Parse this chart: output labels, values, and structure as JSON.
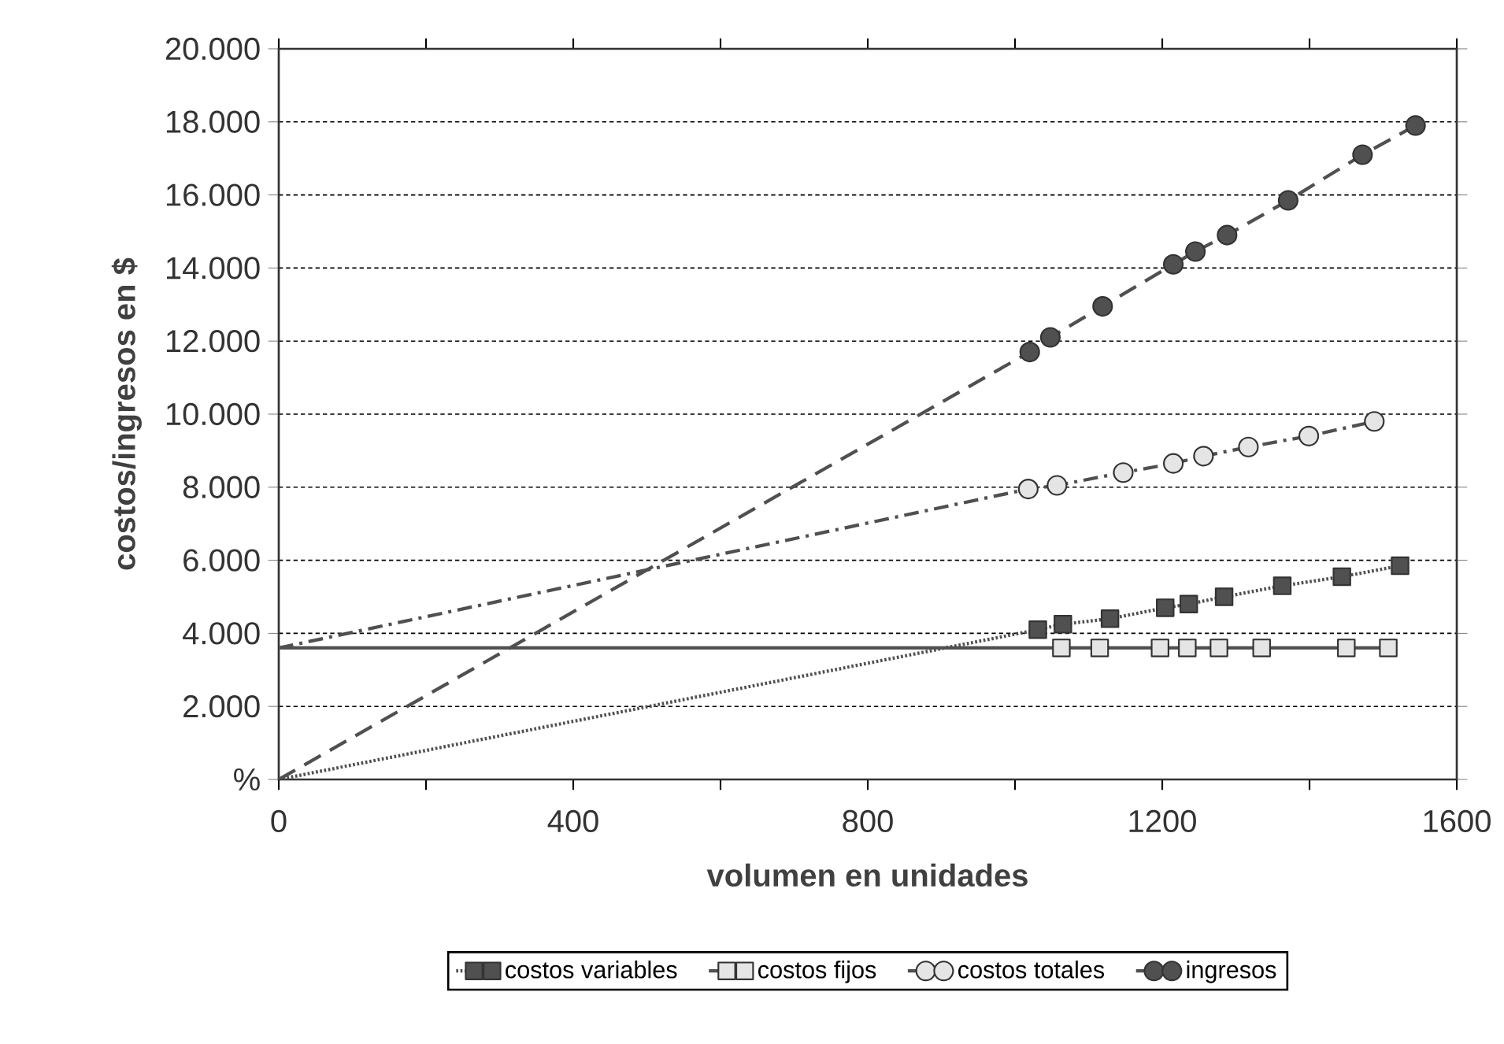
{
  "chart_data": {
    "type": "line",
    "xlabel": "volumen en unidades",
    "ylabel": "costos/ingresos en $",
    "xlim": [
      0,
      1600
    ],
    "ylim": [
      0,
      20000
    ],
    "xticks": [
      0,
      {
        "value": 200,
        "label": null
      },
      400,
      {
        "value": 600,
        "label": null
      },
      800,
      {
        "value": 1000,
        "label": null
      },
      1200,
      {
        "value": 1400,
        "label": null
      },
      1600
    ],
    "yticks": [
      {
        "value": 0,
        "label": "%"
      },
      {
        "value": 2000,
        "label": "2.000"
      },
      {
        "value": 4000,
        "label": "4.000"
      },
      {
        "value": 6000,
        "label": "6.000"
      },
      {
        "value": 8000,
        "label": "8.000"
      },
      {
        "value": 10000,
        "label": "10.000"
      },
      {
        "value": 12000,
        "label": "12.000"
      },
      {
        "value": 14000,
        "label": "14.000"
      },
      {
        "value": 16000,
        "label": "16.000"
      },
      {
        "value": 18000,
        "label": "18.000"
      },
      {
        "value": 20000,
        "label": "20.000"
      }
    ],
    "grid": "y",
    "legend": "bottom",
    "series": [
      {
        "name": "costos variables",
        "color": "#505050",
        "line_style": "dotted",
        "marker": "square",
        "x": [
          0,
          1031,
          1065,
          1129,
          1204,
          1236,
          1284,
          1363,
          1444,
          1523
        ],
        "values": [
          0,
          4100,
          4250,
          4400,
          4700,
          4800,
          5000,
          5300,
          5550,
          5850
        ]
      },
      {
        "name": "costos fijos",
        "color": "#505050",
        "line_style": "solid",
        "marker": "square",
        "x": [
          0,
          1063,
          1115,
          1197,
          1234,
          1277,
          1335,
          1450,
          1507
        ],
        "values": [
          3600,
          3600,
          3600,
          3600,
          3600,
          3600,
          3600,
          3600,
          3600
        ]
      },
      {
        "name": "costos totales",
        "color": "#505050",
        "line_style": "dashdot",
        "marker": "circle",
        "x": [
          0,
          1018,
          1057,
          1147,
          1215,
          1256,
          1317,
          1399,
          1488
        ],
        "values": [
          3600,
          7950,
          8050,
          8400,
          8650,
          8850,
          9100,
          9400,
          9800
        ]
      },
      {
        "name": "ingresos",
        "color": "#505050",
        "line_style": "dashed",
        "marker": "circle",
        "x": [
          0,
          1020,
          1048,
          1119,
          1215,
          1245,
          1288,
          1371,
          1472,
          1544
        ],
        "values": [
          0,
          11700,
          12100,
          12950,
          14100,
          14450,
          14900,
          15850,
          17100,
          17900
        ]
      }
    ]
  }
}
